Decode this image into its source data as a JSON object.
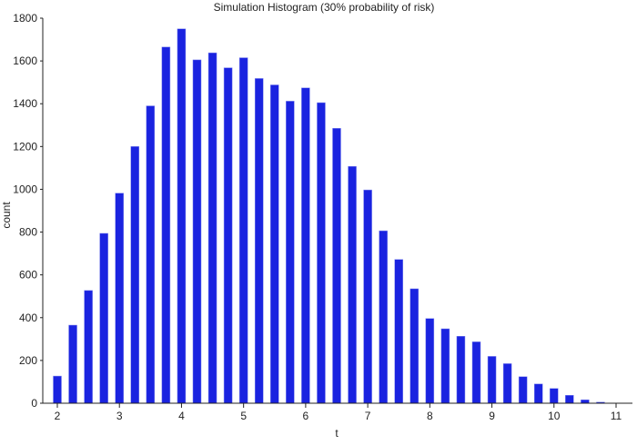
{
  "chart_data": {
    "type": "bar",
    "title": "Simulation Histogram (30% probability of risk)",
    "xlabel": "t",
    "ylabel": "count",
    "xlim": [
      2,
      11
    ],
    "ylim": [
      0,
      1800
    ],
    "xticks": [
      2,
      3,
      4,
      5,
      6,
      7,
      8,
      9,
      10,
      11
    ],
    "yticks": [
      0,
      200,
      400,
      600,
      800,
      1000,
      1200,
      1400,
      1600,
      1800
    ],
    "grid": false,
    "bar_color": "#1a23e0",
    "x": [
      2,
      2.25,
      2.5,
      2.75,
      3,
      3.25,
      3.5,
      3.75,
      4,
      4.25,
      4.5,
      4.75,
      5,
      5.25,
      5.5,
      5.75,
      6,
      6.25,
      6.5,
      6.75,
      7,
      7.25,
      7.5,
      7.75,
      8,
      8.25,
      8.5,
      8.75,
      9,
      9.25,
      9.5,
      9.75,
      10,
      10.25,
      10.5,
      10.75,
      11
    ],
    "values": [
      127,
      365,
      527,
      794,
      982,
      1200,
      1390,
      1665,
      1750,
      1605,
      1638,
      1568,
      1615,
      1518,
      1488,
      1412,
      1474,
      1405,
      1285,
      1107,
      997,
      806,
      672,
      535,
      396,
      348,
      313,
      287,
      219,
      185,
      124,
      90,
      69,
      37,
      16,
      5,
      1
    ]
  }
}
